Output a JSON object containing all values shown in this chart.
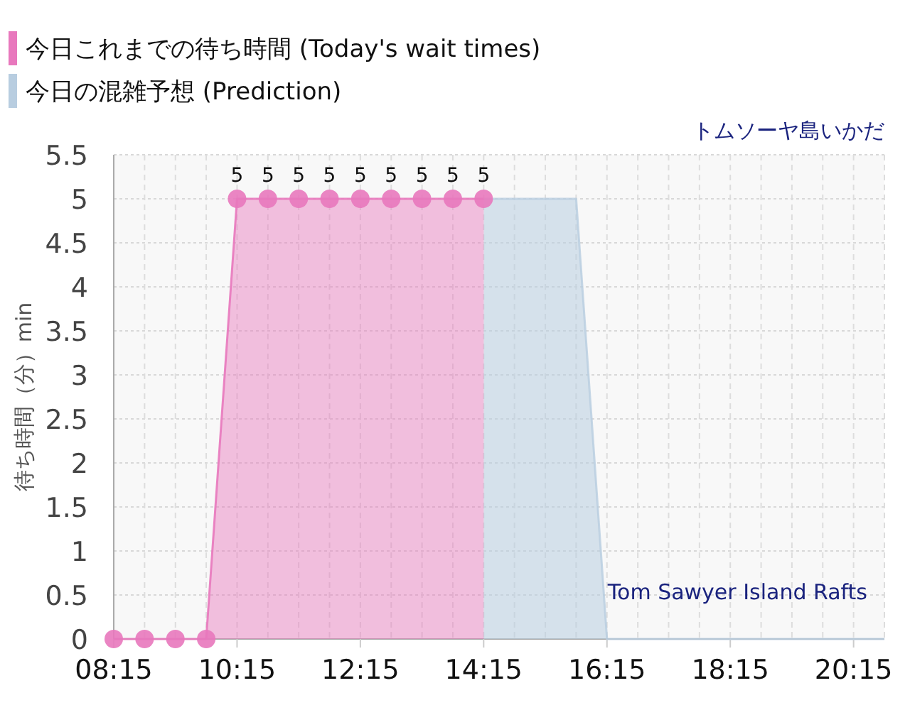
{
  "chart_data": {
    "type": "area",
    "title": "トムソーヤ島いかだ",
    "ylabel": "待ち時間（分）min",
    "annotations": [
      "Tom Sawyer Island Rafts"
    ],
    "legend": "top left",
    "grid": true,
    "marker": "circle",
    "xlim": [
      8.25,
      20.75
    ],
    "xticks": [
      {
        "value": 8.25,
        "label": "08:15"
      },
      {
        "value": 10.25,
        "label": "10:15"
      },
      {
        "value": 12.25,
        "label": "12:15"
      },
      {
        "value": 14.25,
        "label": "14:15"
      },
      {
        "value": 16.25,
        "label": "16:15"
      },
      {
        "value": 18.25,
        "label": "18:15"
      },
      {
        "value": 20.25,
        "label": "20:15"
      }
    ],
    "ylim": [
      0,
      5.5
    ],
    "yticks": [
      0,
      0.5,
      1,
      1.5,
      2,
      2.5,
      3,
      3.5,
      4,
      4.5,
      5,
      5.5
    ],
    "series": [
      {
        "name": "今日の混雑予想 (Prediction)",
        "color": "#b8cde0",
        "marker": "none",
        "x": [
          14.25,
          14.75,
          15.25,
          15.75,
          16.25,
          16.75,
          17.25,
          17.75,
          18.25,
          18.75,
          19.25,
          19.75,
          20.25,
          20.75
        ],
        "values": [
          5,
          5,
          5,
          5,
          0,
          0,
          0,
          0,
          0,
          0,
          0,
          0,
          0,
          0
        ]
      },
      {
        "name": "今日これまでの待ち時間 (Today's wait times)",
        "color": "#e878bd",
        "x": [
          8.25,
          8.75,
          9.25,
          9.75,
          10.25,
          10.75,
          11.25,
          11.75,
          12.25,
          12.75,
          13.25,
          13.75,
          14.25
        ],
        "values": [
          0,
          0,
          0,
          0,
          5,
          5,
          5,
          5,
          5,
          5,
          5,
          5,
          5
        ],
        "value_labels": [
          null,
          null,
          null,
          null,
          "5",
          "5",
          "5",
          "5",
          "5",
          "5",
          "5",
          "5",
          "5"
        ]
      }
    ]
  }
}
